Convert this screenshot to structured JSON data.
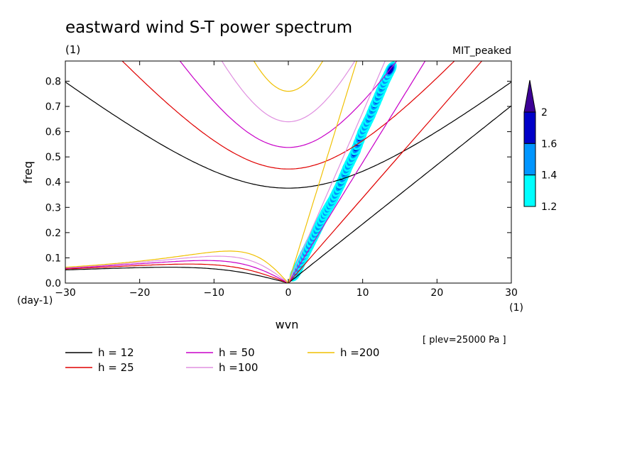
{
  "chart_data": {
    "type": "line",
    "title": "eastward wind S-T power spectrum",
    "units_label": "(1)",
    "run_label": "MIT_peaked",
    "xlabel": "wvn",
    "ylabel": "freq",
    "x_units": "(1)",
    "y_units": "(day-1)",
    "xlim": [
      -30,
      30
    ],
    "ylim": [
      0,
      0.88
    ],
    "xticks": [
      -30,
      -20,
      -10,
      0,
      10,
      20,
      30
    ],
    "yticks": [
      0.0,
      0.1,
      0.2,
      0.3,
      0.4,
      0.5,
      0.6,
      0.7,
      0.8
    ],
    "plev_label": "[ plev=25000 Pa ]",
    "colorbar": {
      "ticks": [
        "1.2",
        "1.4",
        "1.6",
        "2"
      ],
      "colors": [
        "#00ffff",
        "#0096ff",
        "#0000c8",
        "#3c0096"
      ]
    },
    "series": [
      {
        "name": "h = 12",
        "h": 12,
        "color": "#000000"
      },
      {
        "name": "h = 25",
        "h": 25,
        "color": "#e00000"
      },
      {
        "name": "h = 50",
        "h": 50,
        "color": "#c800c8"
      },
      {
        "name": "h =100",
        "h": 100,
        "color": "#e090e0"
      },
      {
        "name": "h =200",
        "h": 200,
        "color": "#f0c000"
      }
    ],
    "spectral_peak_ridge": [
      [
        1,
        0.04
      ],
      [
        2,
        0.1
      ],
      [
        3,
        0.16
      ],
      [
        4,
        0.22
      ],
      [
        5,
        0.28
      ],
      [
        6,
        0.33
      ],
      [
        7,
        0.39
      ],
      [
        8,
        0.46
      ],
      [
        9,
        0.52
      ],
      [
        10,
        0.6
      ],
      [
        11,
        0.66
      ],
      [
        12,
        0.73
      ],
      [
        13,
        0.8
      ],
      [
        14,
        0.86
      ]
    ]
  }
}
